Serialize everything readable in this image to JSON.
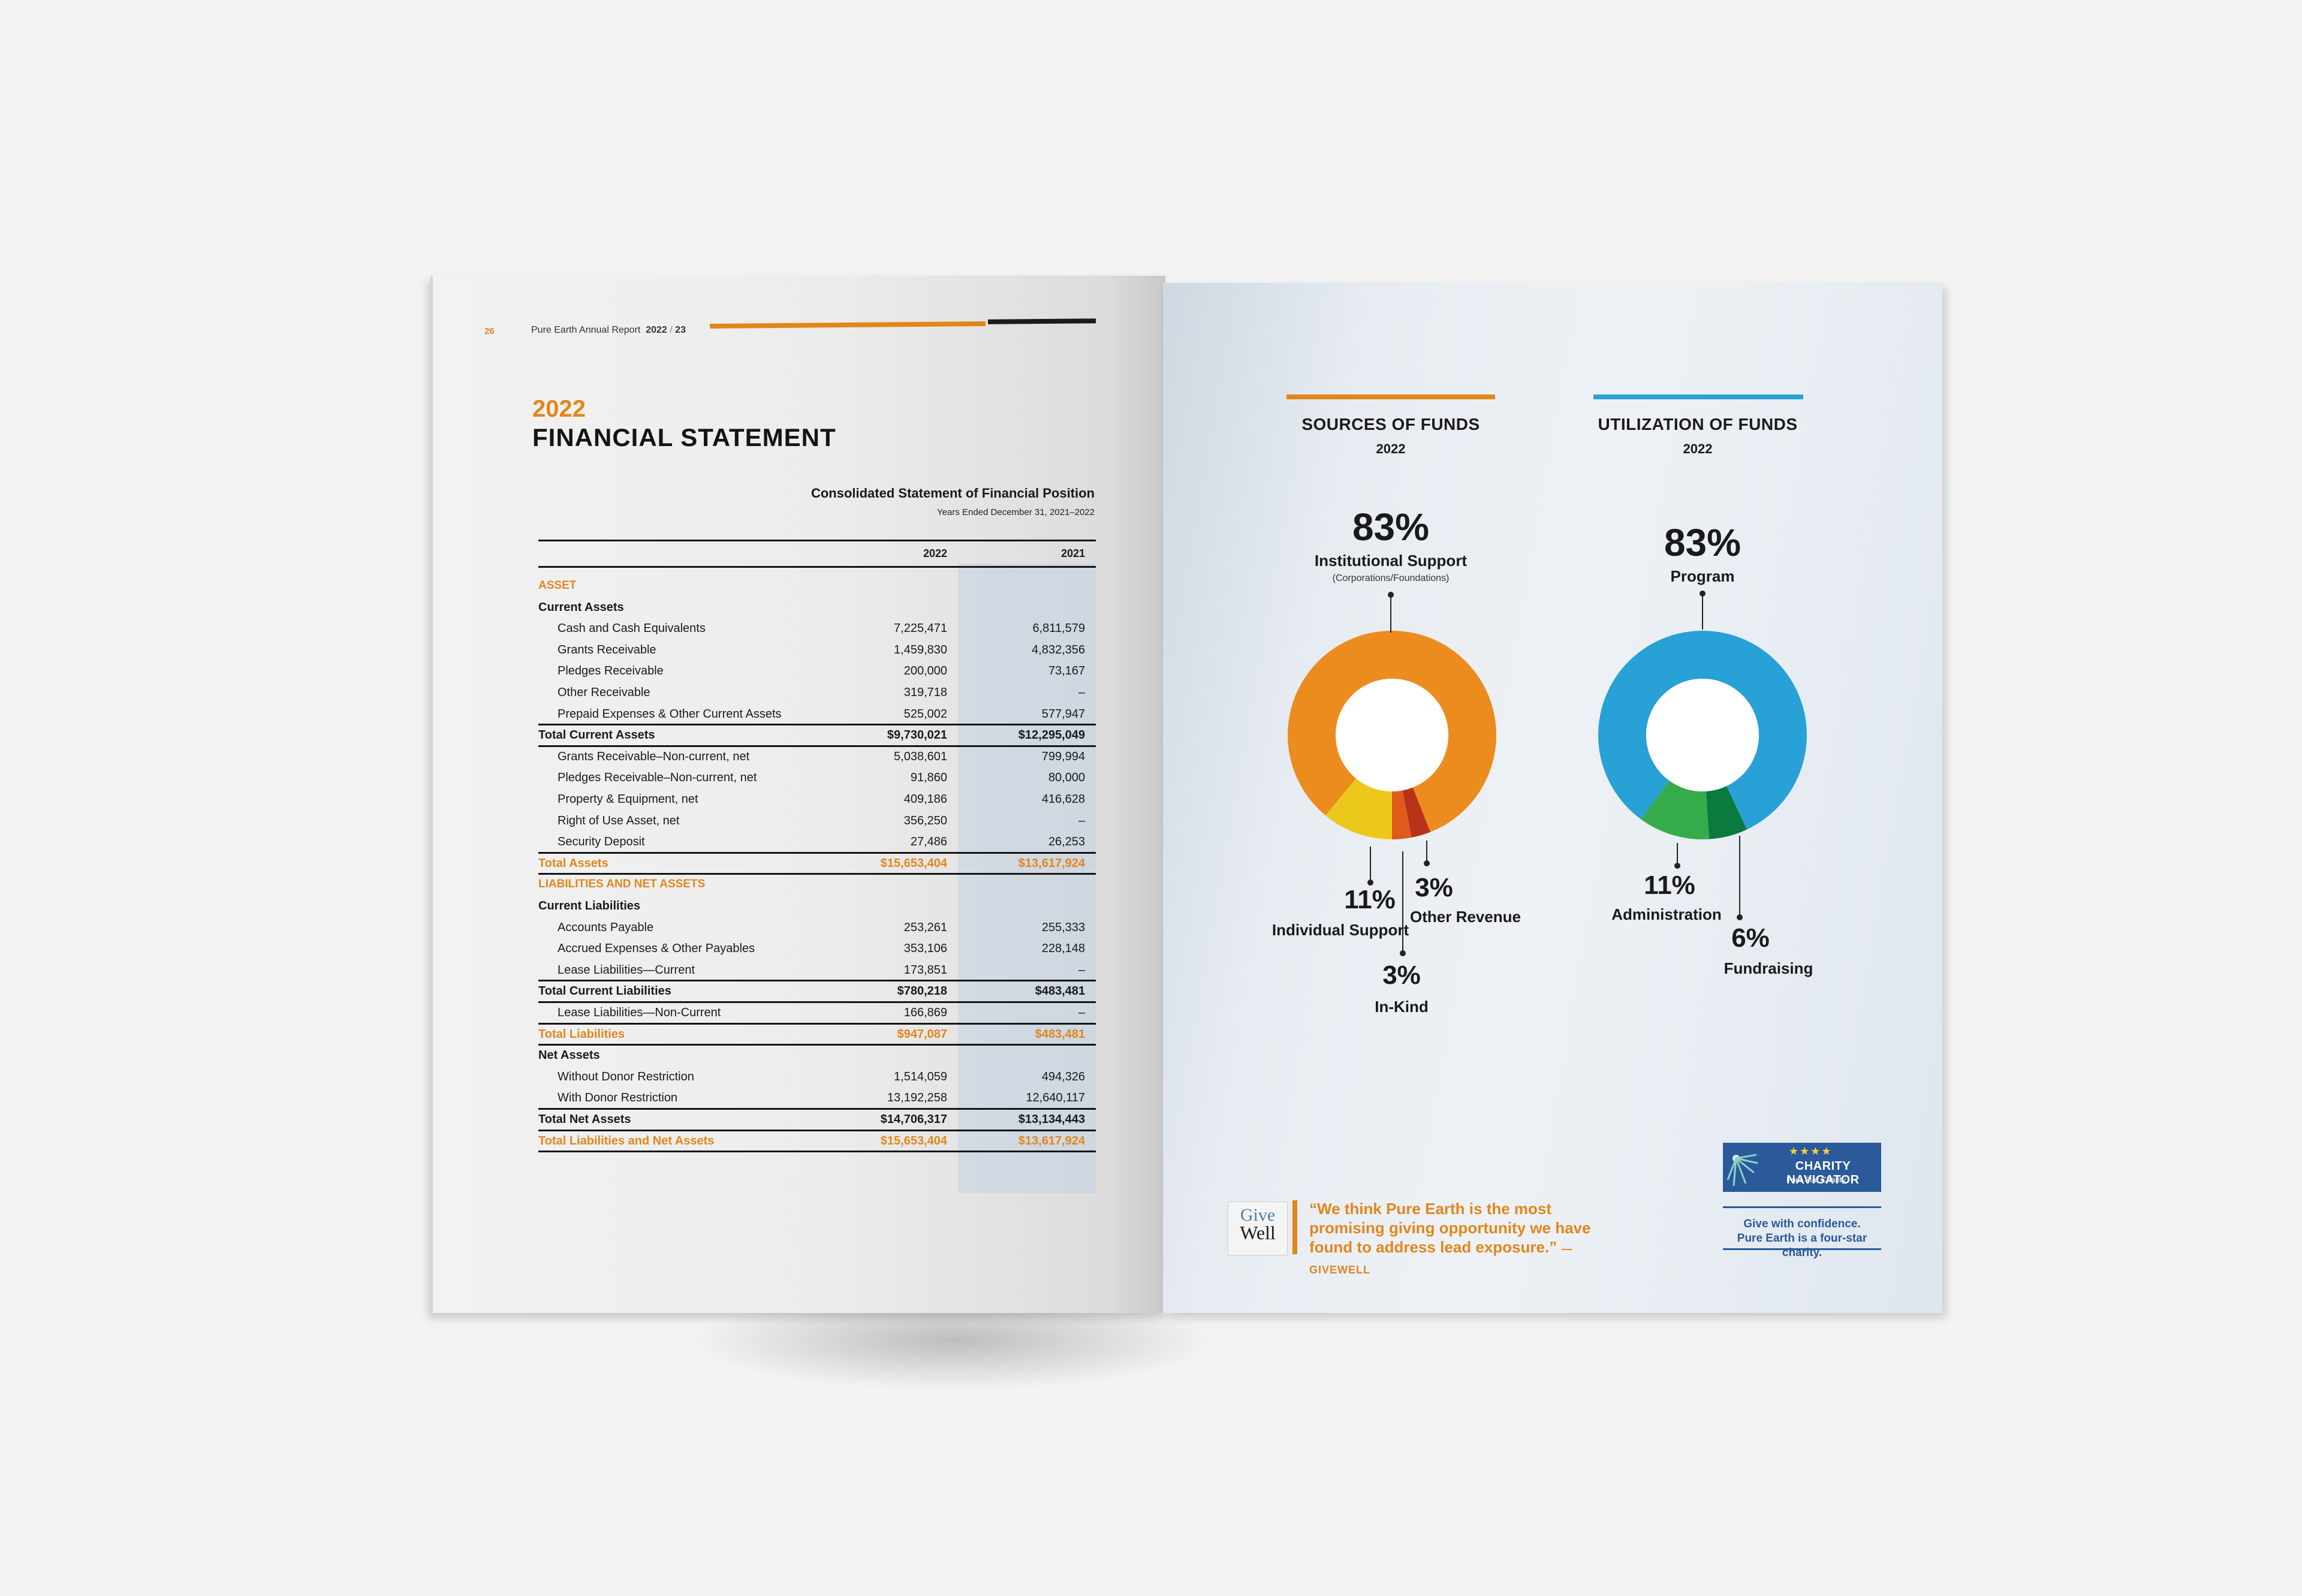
{
  "header": {
    "page_number": "26",
    "report_name": "Pure Earth Annual Report",
    "report_years": "2022",
    "report_years_suffix": "23"
  },
  "statement": {
    "year": "2022",
    "title": "FINANCIAL STATEMENT",
    "table_title": "Consolidated Statement of Financial Position",
    "table_subtitle": "Years Ended December 31, 2021–2022",
    "col_2022": "2022",
    "col_2021": "2021",
    "rows": [
      {
        "label": "ASSET",
        "v2022": "",
        "v2021": "",
        "style": "orange-head"
      },
      {
        "label": "Current Assets",
        "v2022": "",
        "v2021": "",
        "style": "section"
      },
      {
        "label": "Cash and Cash Equivalents",
        "v2022": "7,225,471",
        "v2021": "6,811,579",
        "style": "indent"
      },
      {
        "label": "Grants Receivable",
        "v2022": "1,459,830",
        "v2021": "4,832,356",
        "style": "indent"
      },
      {
        "label": "Pledges Receivable",
        "v2022": "200,000",
        "v2021": "73,167",
        "style": "indent"
      },
      {
        "label": "Other Receivable",
        "v2022": "319,718",
        "v2021": "–",
        "style": "indent"
      },
      {
        "label": "Prepaid Expenses & Other Current Assets",
        "v2022": "525,002",
        "v2021": "577,947",
        "style": "indent"
      },
      {
        "label": "Total Current Assets",
        "v2022": "$9,730,021",
        "v2021": "$12,295,049",
        "style": "bold"
      },
      {
        "label": "Grants Receivable–Non-current, net",
        "v2022": "5,038,601",
        "v2021": "799,994",
        "style": "indent"
      },
      {
        "label": "Pledges Receivable–Non-current, net",
        "v2022": "91,860",
        "v2021": "80,000",
        "style": "indent"
      },
      {
        "label": "Property & Equipment, net",
        "v2022": "409,186",
        "v2021": "416,628",
        "style": "indent"
      },
      {
        "label": "Right of Use Asset, net",
        "v2022": "356,250",
        "v2021": "–",
        "style": "indent"
      },
      {
        "label": "Security Deposit",
        "v2022": "27,486",
        "v2021": "26,253",
        "style": "indent"
      },
      {
        "label": "Total Assets",
        "v2022": "$15,653,404",
        "v2021": "$13,617,924",
        "style": "orange"
      },
      {
        "label": "LIABILITIES AND NET ASSETS",
        "v2022": "",
        "v2021": "",
        "style": "orange-head"
      },
      {
        "label": "Current Liabilities",
        "v2022": "",
        "v2021": "",
        "style": "section"
      },
      {
        "label": "Accounts Payable",
        "v2022": "253,261",
        "v2021": "255,333",
        "style": "indent"
      },
      {
        "label": "Accrued Expenses & Other Payables",
        "v2022": "353,106",
        "v2021": "228,148",
        "style": "indent"
      },
      {
        "label": "Lease Liabilities—Current",
        "v2022": "173,851",
        "v2021": "–",
        "style": "indent"
      },
      {
        "label": "Total Current Liabilities",
        "v2022": "$780,218",
        "v2021": "$483,481",
        "style": "bold"
      },
      {
        "label": "Lease Liabilities—Non-Current",
        "v2022": "166,869",
        "v2021": "–",
        "style": "indent"
      },
      {
        "label": "Total Liabilities",
        "v2022": "$947,087",
        "v2021": "$483,481",
        "style": "orange"
      },
      {
        "label": "Net Assets",
        "v2022": "",
        "v2021": "",
        "style": "section"
      },
      {
        "label": "Without Donor Restriction",
        "v2022": "1,514,059",
        "v2021": "494,326",
        "style": "indent"
      },
      {
        "label": "With Donor Restriction",
        "v2022": "13,192,258",
        "v2021": "12,640,117",
        "style": "indent"
      },
      {
        "label": "Total Net Assets",
        "v2022": "$14,706,317",
        "v2021": "$13,134,443",
        "style": "bold"
      },
      {
        "label": "Total Liabilities and Net Assets",
        "v2022": "$15,653,404",
        "v2021": "$13,617,924",
        "style": "orange"
      }
    ]
  },
  "sources": {
    "title": "SOURCES OF FUNDS",
    "year": "2022",
    "accent": "#e2861c",
    "main_pct": "83%",
    "main_label": "Institutional Support",
    "main_sublabel": "(Corporations/Foundations)",
    "individual_pct": "11%",
    "individual_label": "Individual Support",
    "other_pct": "3%",
    "other_label": "Other Revenue",
    "inkind_pct": "3%",
    "inkind_label": "In-Kind"
  },
  "utilization": {
    "title": "UTILIZATION OF FUNDS",
    "year": "2022",
    "accent": "#2aa1d6",
    "program_pct": "83%",
    "program_label": "Program",
    "admin_pct": "11%",
    "admin_label": "Administration",
    "fund_pct": "6%",
    "fund_label": "Fundraising"
  },
  "chart_data": [
    {
      "type": "pie",
      "title": "SOURCES OF FUNDS",
      "subtitle": "2022",
      "categories": [
        "Institutional Support",
        "Individual Support",
        "In-Kind",
        "Other Revenue"
      ],
      "values": [
        83,
        11,
        3,
        3
      ],
      "colors": [
        "#ec8c1f",
        "#ecc81c",
        "#e05a1c",
        "#b8321a"
      ]
    },
    {
      "type": "pie",
      "title": "UTILIZATION OF FUNDS",
      "subtitle": "2022",
      "categories": [
        "Program",
        "Administration",
        "Fundraising"
      ],
      "values": [
        83,
        11,
        6
      ],
      "colors": [
        "#27a1d6",
        "#36ab4a",
        "#0b7a3e"
      ]
    }
  ],
  "givewell": {
    "logo_top": "Give",
    "logo_bottom": "Well",
    "quote": "“We think Pure Earth is the most promising giving opportunity we have found to address lead exposure.”",
    "attribution": "—GIVEWELL"
  },
  "charity_navigator": {
    "stars": "★★★★",
    "name": "CHARITY NAVIGATOR",
    "rating": "Four Star Charity",
    "line1": "Give with confidence.",
    "line2": "Pure Earth is a four-star charity."
  }
}
